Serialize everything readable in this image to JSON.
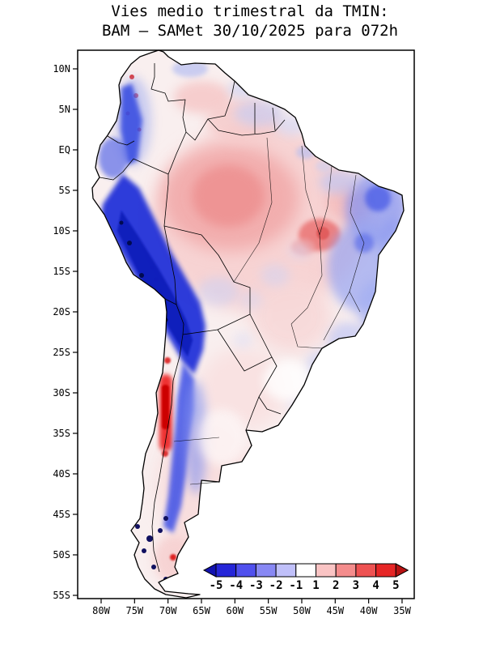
{
  "title": {
    "line1": "Vies medio trimestral da TMIN:",
    "line2": "BAM – SAMet 30/10/2025  para 072h"
  },
  "map": {
    "region": "South America",
    "lat_ticks": [
      "10N",
      "5N",
      "EQ",
      "5S",
      "10S",
      "15S",
      "20S",
      "25S",
      "30S",
      "35S",
      "40S",
      "45S",
      "50S",
      "55S"
    ],
    "lon_ticks": [
      "80W",
      "75W",
      "70W",
      "65W",
      "60W",
      "55W",
      "50W",
      "45W",
      "40W",
      "35W"
    ]
  },
  "colorbar": {
    "tick_labels": [
      "-5",
      "-4",
      "-3",
      "-2",
      "-1",
      "1",
      "2",
      "3",
      "4",
      "5"
    ],
    "arrow_left_color": "#1212b0",
    "segment_colors": [
      "#2626d8",
      "#5050ee",
      "#8888f4",
      "#c0c0fa",
      "#ffffff",
      "#fac4c4",
      "#f48c8c",
      "#ee5252",
      "#e62626"
    ],
    "arrow_right_color": "#b81212"
  },
  "chart_data": {
    "type": "heatmap",
    "title": "Vies medio trimestral da TMIN: BAM – SAMet 30/10/2025 para 072h",
    "extent": {
      "lat_range": [
        "10N",
        "55S"
      ],
      "lon_range": [
        "80W",
        "35W"
      ]
    },
    "colorbar_boundaries": [
      -5,
      -4,
      -3,
      -2,
      -1,
      1,
      2,
      3,
      4,
      5
    ],
    "legend_position": "bottom-inset",
    "pattern_summary": "Warm (red) bias over central Amazon and central Chile; strong cold (blue) bias along Peru/Bolivia Andes, southern Andes and eastern Brazil; near-neutral elsewhere"
  }
}
